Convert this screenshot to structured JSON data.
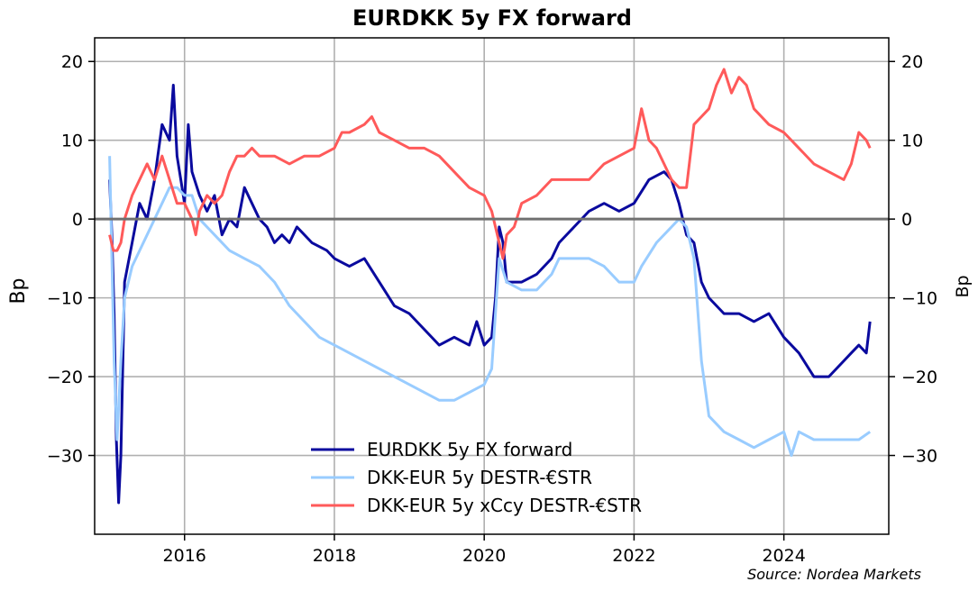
{
  "chart_data": {
    "type": "line",
    "title": "EURDKK 5y FX forward",
    "ylabel": "Bp",
    "ylabel_right": "Bp",
    "source": "Source: Nordea Markets",
    "xlim": [
      2014.8,
      2025.4
    ],
    "ylim": [
      -40,
      23
    ],
    "x_ticks": [
      2016,
      2018,
      2020,
      2022,
      2024
    ],
    "y_ticks": [
      20,
      10,
      0,
      -10,
      -20,
      -30
    ],
    "grid": true,
    "zero_line": true,
    "legend_position": "lower-center",
    "series": [
      {
        "name": "EURDKK 5y FX forward",
        "color": "#0a0a9e",
        "points": [
          [
            2015.0,
            5
          ],
          [
            2015.03,
            -2
          ],
          [
            2015.06,
            -12
          ],
          [
            2015.09,
            -28
          ],
          [
            2015.12,
            -36
          ],
          [
            2015.15,
            -30
          ],
          [
            2015.2,
            -8
          ],
          [
            2015.3,
            -3
          ],
          [
            2015.4,
            2
          ],
          [
            2015.5,
            0
          ],
          [
            2015.6,
            5
          ],
          [
            2015.7,
            12
          ],
          [
            2015.8,
            10
          ],
          [
            2015.85,
            17
          ],
          [
            2015.9,
            8
          ],
          [
            2015.95,
            5
          ],
          [
            2016.0,
            2
          ],
          [
            2016.05,
            12
          ],
          [
            2016.1,
            6
          ],
          [
            2016.2,
            3
          ],
          [
            2016.3,
            1
          ],
          [
            2016.4,
            3
          ],
          [
            2016.5,
            -2
          ],
          [
            2016.6,
            0
          ],
          [
            2016.7,
            -1
          ],
          [
            2016.8,
            4
          ],
          [
            2016.9,
            2
          ],
          [
            2017.0,
            0
          ],
          [
            2017.1,
            -1
          ],
          [
            2017.2,
            -3
          ],
          [
            2017.3,
            -2
          ],
          [
            2017.4,
            -3
          ],
          [
            2017.5,
            -1
          ],
          [
            2017.7,
            -3
          ],
          [
            2017.9,
            -4
          ],
          [
            2018.0,
            -5
          ],
          [
            2018.2,
            -6
          ],
          [
            2018.4,
            -5
          ],
          [
            2018.6,
            -8
          ],
          [
            2018.8,
            -11
          ],
          [
            2019.0,
            -12
          ],
          [
            2019.2,
            -14
          ],
          [
            2019.4,
            -16
          ],
          [
            2019.6,
            -15
          ],
          [
            2019.8,
            -16
          ],
          [
            2019.9,
            -13
          ],
          [
            2020.0,
            -16
          ],
          [
            2020.1,
            -15
          ],
          [
            2020.15,
            -10
          ],
          [
            2020.2,
            -1
          ],
          [
            2020.25,
            -3
          ],
          [
            2020.3,
            -8
          ],
          [
            2020.5,
            -8
          ],
          [
            2020.7,
            -7
          ],
          [
            2020.9,
            -5
          ],
          [
            2021.0,
            -3
          ],
          [
            2021.2,
            -1
          ],
          [
            2021.4,
            1
          ],
          [
            2021.6,
            2
          ],
          [
            2021.8,
            1
          ],
          [
            2022.0,
            2
          ],
          [
            2022.2,
            5
          ],
          [
            2022.4,
            6
          ],
          [
            2022.5,
            5
          ],
          [
            2022.6,
            2
          ],
          [
            2022.7,
            -2
          ],
          [
            2022.8,
            -3
          ],
          [
            2022.9,
            -8
          ],
          [
            2023.0,
            -10
          ],
          [
            2023.2,
            -12
          ],
          [
            2023.4,
            -12
          ],
          [
            2023.6,
            -13
          ],
          [
            2023.8,
            -12
          ],
          [
            2024.0,
            -15
          ],
          [
            2024.2,
            -17
          ],
          [
            2024.4,
            -20
          ],
          [
            2024.6,
            -20
          ],
          [
            2024.8,
            -18
          ],
          [
            2024.9,
            -17
          ],
          [
            2025.0,
            -16
          ],
          [
            2025.1,
            -17
          ],
          [
            2025.15,
            -13
          ]
        ]
      },
      {
        "name": "DKK-EUR 5y DESTR-€STR",
        "color": "#99ccff",
        "points": [
          [
            2015.0,
            8
          ],
          [
            2015.03,
            -5
          ],
          [
            2015.06,
            -18
          ],
          [
            2015.1,
            -28
          ],
          [
            2015.15,
            -18
          ],
          [
            2015.2,
            -10
          ],
          [
            2015.3,
            -6
          ],
          [
            2015.4,
            -4
          ],
          [
            2015.5,
            -2
          ],
          [
            2015.6,
            0
          ],
          [
            2015.7,
            2
          ],
          [
            2015.8,
            4
          ],
          [
            2015.9,
            4
          ],
          [
            2016.0,
            3
          ],
          [
            2016.1,
            3
          ],
          [
            2016.2,
            0
          ],
          [
            2016.4,
            -2
          ],
          [
            2016.6,
            -4
          ],
          [
            2016.8,
            -5
          ],
          [
            2017.0,
            -6
          ],
          [
            2017.2,
            -8
          ],
          [
            2017.4,
            -11
          ],
          [
            2017.6,
            -13
          ],
          [
            2017.8,
            -15
          ],
          [
            2018.0,
            -16
          ],
          [
            2018.2,
            -17
          ],
          [
            2018.4,
            -18
          ],
          [
            2018.6,
            -19
          ],
          [
            2018.8,
            -20
          ],
          [
            2019.0,
            -21
          ],
          [
            2019.2,
            -22
          ],
          [
            2019.4,
            -23
          ],
          [
            2019.6,
            -23
          ],
          [
            2019.8,
            -22
          ],
          [
            2020.0,
            -21
          ],
          [
            2020.1,
            -19
          ],
          [
            2020.2,
            -5
          ],
          [
            2020.3,
            -8
          ],
          [
            2020.5,
            -9
          ],
          [
            2020.7,
            -9
          ],
          [
            2020.9,
            -7
          ],
          [
            2021.0,
            -5
          ],
          [
            2021.2,
            -5
          ],
          [
            2021.4,
            -5
          ],
          [
            2021.6,
            -6
          ],
          [
            2021.8,
            -8
          ],
          [
            2022.0,
            -8
          ],
          [
            2022.1,
            -6
          ],
          [
            2022.3,
            -3
          ],
          [
            2022.5,
            -1
          ],
          [
            2022.6,
            0
          ],
          [
            2022.7,
            -1
          ],
          [
            2022.8,
            -5
          ],
          [
            2022.9,
            -18
          ],
          [
            2023.0,
            -25
          ],
          [
            2023.2,
            -27
          ],
          [
            2023.4,
            -28
          ],
          [
            2023.6,
            -29
          ],
          [
            2023.8,
            -28
          ],
          [
            2024.0,
            -27
          ],
          [
            2024.1,
            -30
          ],
          [
            2024.2,
            -27
          ],
          [
            2024.4,
            -28
          ],
          [
            2024.6,
            -28
          ],
          [
            2024.8,
            -28
          ],
          [
            2025.0,
            -28
          ],
          [
            2025.15,
            -27
          ]
        ]
      },
      {
        "name": "DKK-EUR 5y xCcy DESTR-€STR",
        "color": "#ff5a5a",
        "points": [
          [
            2015.0,
            -2
          ],
          [
            2015.05,
            -4
          ],
          [
            2015.1,
            -4
          ],
          [
            2015.15,
            -3
          ],
          [
            2015.2,
            0
          ],
          [
            2015.3,
            3
          ],
          [
            2015.4,
            5
          ],
          [
            2015.5,
            7
          ],
          [
            2015.6,
            5
          ],
          [
            2015.7,
            8
          ],
          [
            2015.8,
            5
          ],
          [
            2015.9,
            2
          ],
          [
            2016.0,
            2
          ],
          [
            2016.1,
            0
          ],
          [
            2016.15,
            -2
          ],
          [
            2016.2,
            1
          ],
          [
            2016.3,
            3
          ],
          [
            2016.4,
            2
          ],
          [
            2016.5,
            3
          ],
          [
            2016.6,
            6
          ],
          [
            2016.7,
            8
          ],
          [
            2016.8,
            8
          ],
          [
            2016.9,
            9
          ],
          [
            2017.0,
            8
          ],
          [
            2017.2,
            8
          ],
          [
            2017.4,
            7
          ],
          [
            2017.6,
            8
          ],
          [
            2017.8,
            8
          ],
          [
            2018.0,
            9
          ],
          [
            2018.1,
            11
          ],
          [
            2018.2,
            11
          ],
          [
            2018.4,
            12
          ],
          [
            2018.5,
            13
          ],
          [
            2018.6,
            11
          ],
          [
            2018.8,
            10
          ],
          [
            2019.0,
            9
          ],
          [
            2019.2,
            9
          ],
          [
            2019.4,
            8
          ],
          [
            2019.6,
            6
          ],
          [
            2019.8,
            4
          ],
          [
            2020.0,
            3
          ],
          [
            2020.1,
            1
          ],
          [
            2020.2,
            -3
          ],
          [
            2020.25,
            -5
          ],
          [
            2020.3,
            -2
          ],
          [
            2020.4,
            -1
          ],
          [
            2020.5,
            2
          ],
          [
            2020.7,
            3
          ],
          [
            2020.9,
            5
          ],
          [
            2021.0,
            5
          ],
          [
            2021.2,
            5
          ],
          [
            2021.4,
            5
          ],
          [
            2021.6,
            7
          ],
          [
            2021.8,
            8
          ],
          [
            2022.0,
            9
          ],
          [
            2022.1,
            14
          ],
          [
            2022.2,
            10
          ],
          [
            2022.3,
            9
          ],
          [
            2022.4,
            7
          ],
          [
            2022.5,
            5
          ],
          [
            2022.6,
            4
          ],
          [
            2022.7,
            4
          ],
          [
            2022.8,
            12
          ],
          [
            2022.9,
            13
          ],
          [
            2023.0,
            14
          ],
          [
            2023.1,
            17
          ],
          [
            2023.2,
            19
          ],
          [
            2023.3,
            16
          ],
          [
            2023.4,
            18
          ],
          [
            2023.5,
            17
          ],
          [
            2023.6,
            14
          ],
          [
            2023.8,
            12
          ],
          [
            2024.0,
            11
          ],
          [
            2024.2,
            9
          ],
          [
            2024.4,
            7
          ],
          [
            2024.6,
            6
          ],
          [
            2024.8,
            5
          ],
          [
            2024.9,
            7
          ],
          [
            2025.0,
            11
          ],
          [
            2025.1,
            10
          ],
          [
            2025.15,
            9
          ]
        ]
      }
    ]
  }
}
